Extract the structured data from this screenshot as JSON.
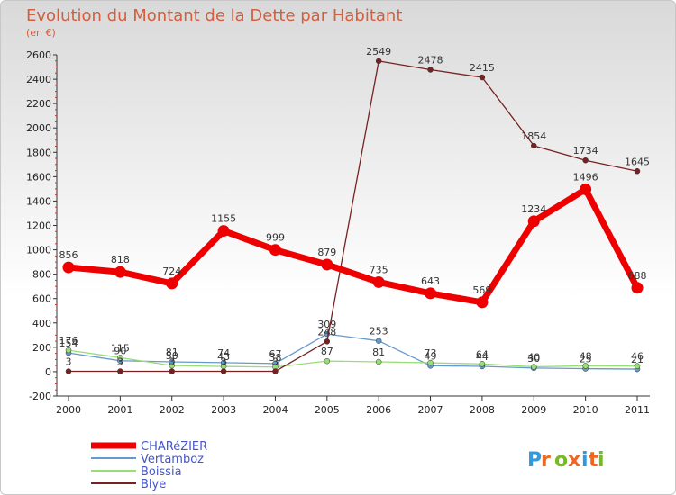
{
  "chart_data": {
    "type": "line",
    "title": "Evolution du Montant de la Dette par Habitant",
    "subtitle": "(en €)",
    "x": [
      "2000",
      "2001",
      "2002",
      "2003",
      "2004",
      "2005",
      "2006",
      "2007",
      "2008",
      "2009",
      "2010",
      "2011"
    ],
    "ylim": [
      -200,
      2600
    ],
    "yticks": [
      -200,
      0,
      200,
      400,
      600,
      800,
      1000,
      1200,
      1400,
      1600,
      1800,
      2000,
      2200,
      2400,
      2600
    ],
    "grid": false,
    "legend_position": "bottom-left",
    "series": [
      {
        "name": "CHARéZIER",
        "color": "#ee0000",
        "values": [
          856,
          818,
          724,
          1155,
          999,
          879,
          735,
          643,
          569,
          1234,
          1496,
          688
        ]
      },
      {
        "name": "Vertamboz",
        "color": "#6699cc",
        "values": [
          154,
          90,
          81,
          74,
          67,
          309,
          253,
          49,
          44,
          30,
          25,
          21
        ]
      },
      {
        "name": "Boissia",
        "color": "#99dd77",
        "values": [
          176,
          115,
          50,
          43,
          38,
          87,
          81,
          73,
          64,
          40,
          48,
          46
        ]
      },
      {
        "name": "Blye",
        "color": "#772222",
        "values": [
          3,
          3,
          3,
          3,
          3,
          248,
          2549,
          2478,
          2415,
          1854,
          1734,
          1645
        ]
      }
    ]
  },
  "logo": {
    "text": "Proxiti"
  }
}
